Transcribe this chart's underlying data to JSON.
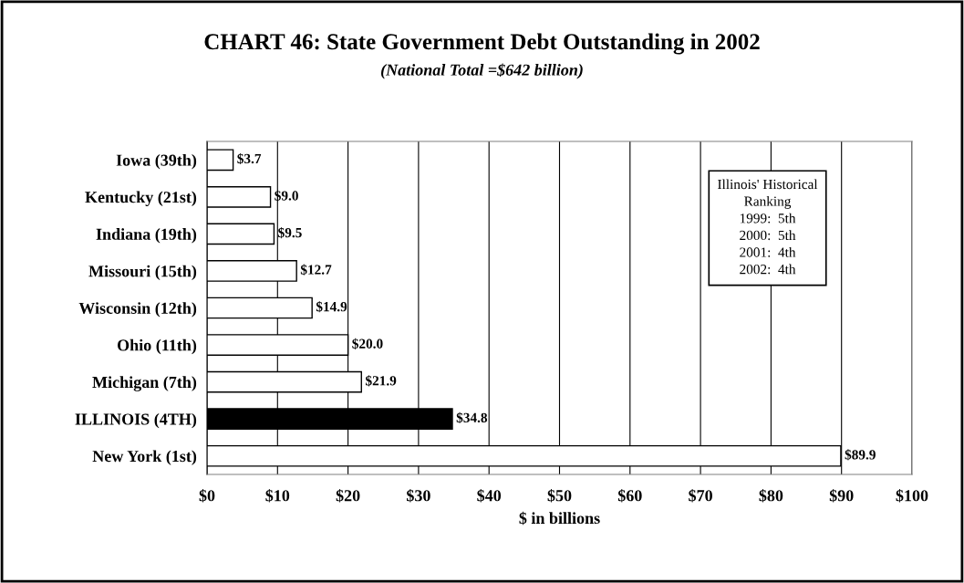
{
  "chart_data": {
    "type": "bar",
    "orientation": "horizontal",
    "title": "CHART 46: State Government Debt Outstanding in 2002",
    "subtitle": "(National Total =$642 billion)",
    "xlabel": "$ in billions",
    "categories": [
      "Iowa (39th)",
      "Kentucky (21st)",
      "Indiana (19th)",
      "Missouri (15th)",
      "Wisconsin (12th)",
      "Ohio (11th)",
      "Michigan (7th)",
      "ILLINOIS (4TH)",
      "New York (1st)"
    ],
    "values": [
      3.7,
      9.0,
      9.5,
      12.7,
      14.9,
      20.0,
      21.9,
      34.8,
      89.9
    ],
    "colors": [
      "#ffffff",
      "#ffffff",
      "#ffffff",
      "#ffffff",
      "#ffffff",
      "#ffffff",
      "#ffffff",
      "#000000",
      "#ffffff"
    ],
    "value_labels": [
      "$3.7",
      "$9.0",
      "$9.5",
      "$12.7",
      "$14.9",
      "$20.0",
      "$21.9",
      "$34.8",
      "$89.9"
    ],
    "xlim": [
      0,
      100
    ],
    "xticks": [
      {
        "value": 0,
        "label": "$0"
      },
      {
        "value": 10,
        "label": "$10"
      },
      {
        "value": 20,
        "label": "$20"
      },
      {
        "value": 30,
        "label": "$30"
      },
      {
        "value": 40,
        "label": "$40"
      },
      {
        "value": 50,
        "label": "$50"
      },
      {
        "value": 60,
        "label": "$60"
      },
      {
        "value": 70,
        "label": "$70"
      },
      {
        "value": 80,
        "label": "$80"
      },
      {
        "value": 90,
        "label": "$90"
      },
      {
        "value": 100,
        "label": "$100"
      }
    ],
    "grid": "x",
    "annotations": [
      "Illinois' Historical\nRanking\n1999:  5th\n2000:  5th\n2001:  4th\n2002:  4th"
    ]
  }
}
